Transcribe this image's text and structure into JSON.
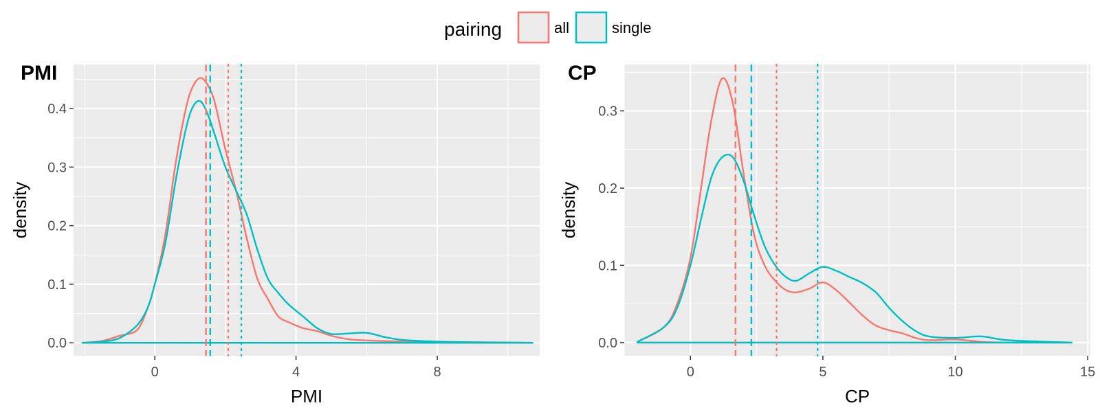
{
  "legend": {
    "title": "pairing",
    "entries": [
      {
        "label": "all",
        "color": "#F8766D"
      },
      {
        "label": "single",
        "color": "#00BFC4"
      }
    ]
  },
  "chart_data": [
    {
      "type": "line",
      "kind": "density",
      "tag": "PMI",
      "xlabel": "PMI",
      "ylabel": "density",
      "xlim": [
        -2.3,
        10.9
      ],
      "ylim": [
        -0.022,
        0.475
      ],
      "xticks": [
        0,
        4,
        8
      ],
      "xtick_labels": [
        "0",
        "4",
        "8"
      ],
      "yticks": [
        0.0,
        0.1,
        0.2,
        0.3,
        0.4
      ],
      "ytick_labels": [
        "0.0",
        "0.1",
        "0.2",
        "0.3",
        "0.4"
      ],
      "grid": true,
      "series": [
        {
          "name": "all",
          "color": "#F8766D",
          "median": 1.45,
          "mean": 2.08,
          "x": [
            -2.05,
            -1.5,
            -1.0,
            -0.5,
            -0.2,
            0.0,
            0.3,
            0.6,
            0.9,
            1.1,
            1.3,
            1.5,
            1.7,
            2.0,
            2.3,
            2.6,
            2.9,
            3.2,
            3.5,
            3.8,
            4.2,
            4.6,
            5.0,
            5.5,
            6.0,
            6.5,
            7.0,
            8.0,
            9.0,
            10.7
          ],
          "y": [
            0.0,
            0.003,
            0.012,
            0.022,
            0.06,
            0.1,
            0.185,
            0.31,
            0.405,
            0.44,
            0.452,
            0.44,
            0.41,
            0.33,
            0.26,
            0.18,
            0.11,
            0.075,
            0.045,
            0.035,
            0.025,
            0.02,
            0.012,
            0.006,
            0.004,
            0.003,
            0.002,
            0.001,
            0.001,
            0.0
          ]
        },
        {
          "name": "single",
          "color": "#00BFC4",
          "median": 1.57,
          "mean": 2.45,
          "x": [
            -2.05,
            -1.5,
            -1.0,
            -0.5,
            -0.2,
            0.0,
            0.3,
            0.6,
            0.9,
            1.1,
            1.3,
            1.5,
            1.7,
            2.0,
            2.3,
            2.6,
            2.9,
            3.2,
            3.5,
            3.8,
            4.2,
            4.6,
            5.0,
            5.5,
            6.0,
            6.5,
            7.0,
            8.0,
            9.0,
            10.7
          ],
          "y": [
            0.0,
            0.002,
            0.008,
            0.03,
            0.06,
            0.1,
            0.17,
            0.28,
            0.37,
            0.405,
            0.412,
            0.39,
            0.355,
            0.3,
            0.26,
            0.22,
            0.16,
            0.11,
            0.085,
            0.065,
            0.045,
            0.025,
            0.015,
            0.016,
            0.017,
            0.01,
            0.005,
            0.002,
            0.001,
            0.0
          ]
        }
      ]
    },
    {
      "type": "line",
      "kind": "density",
      "tag": "CP",
      "xlabel": "CP",
      "ylabel": "density",
      "xlim": [
        -2.5,
        15.1
      ],
      "ylim": [
        -0.017,
        0.36
      ],
      "xticks": [
        0,
        5,
        10,
        15
      ],
      "xtick_labels": [
        "0",
        "5",
        "10",
        "15"
      ],
      "yticks": [
        0.0,
        0.1,
        0.2,
        0.3
      ],
      "ytick_labels": [
        "0.0",
        "0.1",
        "0.2",
        "0.3"
      ],
      "grid": true,
      "series": [
        {
          "name": "all",
          "color": "#F8766D",
          "median": 1.7,
          "mean": 3.25,
          "x": [
            -2.0,
            -1.0,
            -0.5,
            0.0,
            0.4,
            0.8,
            1.2,
            1.6,
            2.0,
            2.4,
            2.8,
            3.2,
            3.6,
            4.0,
            4.5,
            5.0,
            5.5,
            6.0,
            6.5,
            7.0,
            7.5,
            8.0,
            8.5,
            9.0,
            10.0,
            11.0,
            12.0,
            14.4
          ],
          "y": [
            0.001,
            0.02,
            0.05,
            0.11,
            0.2,
            0.29,
            0.342,
            0.31,
            0.22,
            0.14,
            0.1,
            0.08,
            0.068,
            0.065,
            0.07,
            0.078,
            0.068,
            0.052,
            0.035,
            0.022,
            0.016,
            0.012,
            0.006,
            0.003,
            0.004,
            0.001,
            0.0,
            0.0
          ]
        },
        {
          "name": "single",
          "color": "#00BFC4",
          "median": 2.3,
          "mean": 4.8,
          "x": [
            -2.0,
            -1.0,
            -0.5,
            0.0,
            0.4,
            0.8,
            1.2,
            1.6,
            2.0,
            2.4,
            2.8,
            3.2,
            3.6,
            4.0,
            4.5,
            5.0,
            5.5,
            6.0,
            6.5,
            7.0,
            7.5,
            8.0,
            8.5,
            9.0,
            10.0,
            11.0,
            12.0,
            14.4
          ],
          "y": [
            0.001,
            0.02,
            0.045,
            0.1,
            0.16,
            0.215,
            0.24,
            0.24,
            0.21,
            0.165,
            0.125,
            0.1,
            0.085,
            0.08,
            0.09,
            0.098,
            0.093,
            0.085,
            0.077,
            0.065,
            0.045,
            0.028,
            0.015,
            0.008,
            0.006,
            0.008,
            0.003,
            0.0
          ]
        }
      ]
    }
  ]
}
